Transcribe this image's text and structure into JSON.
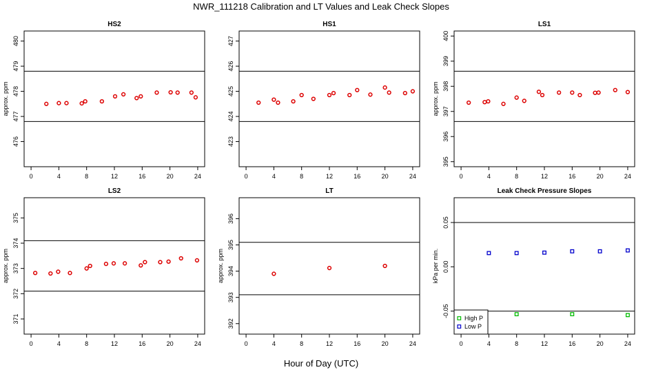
{
  "figure": {
    "title": "NWR_111218  Calibration and LT Values and Leak Check Slopes",
    "xlabel": "Hour of Day (UTC)"
  },
  "chart_data": [
    {
      "id": "hs2",
      "type": "scatter",
      "title": "HS2",
      "ylabel": "approx. ppm",
      "xlim": [
        -1,
        25
      ],
      "ylim": [
        475,
        480.4
      ],
      "xticks": [
        0,
        4,
        8,
        12,
        16,
        20,
        24
      ],
      "yticks": [
        476,
        477,
        478,
        479,
        480
      ],
      "hlines": [
        478.8,
        476.8
      ],
      "series": [
        {
          "color": "#dd0000",
          "marker": "circle",
          "x": [
            2.2,
            4,
            5.1,
            7.3,
            7.8,
            10.2,
            12.1,
            13.3,
            15.2,
            15.8,
            18.1,
            20.1,
            21.1,
            23.1,
            23.7
          ],
          "y": [
            477.5,
            477.53,
            477.53,
            477.52,
            477.6,
            477.6,
            477.8,
            477.88,
            477.73,
            477.8,
            477.95,
            477.96,
            477.95,
            477.95,
            477.76
          ]
        }
      ]
    },
    {
      "id": "hs1",
      "type": "scatter",
      "title": "HS1",
      "ylabel": "",
      "xlim": [
        -1,
        25
      ],
      "ylim": [
        422,
        427.4
      ],
      "xticks": [
        0,
        4,
        8,
        12,
        16,
        20,
        24
      ],
      "yticks": [
        423,
        424,
        425,
        426,
        427
      ],
      "hlines": [
        425.8,
        423.8
      ],
      "series": [
        {
          "color": "#dd0000",
          "marker": "circle",
          "x": [
            1.8,
            4,
            4.6,
            6.8,
            8,
            9.7,
            12,
            12.6,
            14.9,
            16,
            17.9,
            20,
            20.6,
            22.9,
            24
          ],
          "y": [
            424.55,
            424.67,
            424.55,
            424.6,
            424.85,
            424.7,
            424.85,
            424.93,
            424.85,
            425.05,
            424.87,
            425.15,
            424.95,
            424.93,
            425.0
          ]
        }
      ]
    },
    {
      "id": "ls1",
      "type": "scatter",
      "title": "LS1",
      "ylabel": "approx. ppm",
      "xlim": [
        -1,
        25
      ],
      "ylim": [
        394.8,
        400.2
      ],
      "xticks": [
        0,
        4,
        8,
        12,
        16,
        20,
        24
      ],
      "yticks": [
        395,
        396,
        397,
        398,
        399,
        400
      ],
      "hlines": [
        398.6,
        396.6
      ],
      "series": [
        {
          "color": "#dd0000",
          "marker": "circle",
          "x": [
            1.1,
            3.4,
            3.9,
            6.1,
            8,
            9.1,
            11.2,
            11.7,
            14.1,
            16,
            17.1,
            19.3,
            19.8,
            22.2,
            24
          ],
          "y": [
            397.35,
            397.37,
            397.4,
            397.3,
            397.55,
            397.42,
            397.78,
            397.65,
            397.75,
            397.75,
            397.65,
            397.74,
            397.75,
            397.85,
            397.77
          ]
        }
      ]
    },
    {
      "id": "ls2",
      "type": "scatter",
      "title": "LS2",
      "ylabel": "approx. ppm",
      "xlim": [
        -1,
        25
      ],
      "ylim": [
        370.4,
        375.8
      ],
      "xticks": [
        0,
        4,
        8,
        12,
        16,
        20,
        24
      ],
      "yticks": [
        371,
        372,
        373,
        374,
        375
      ],
      "hlines": [
        374.1,
        372.1
      ],
      "series": [
        {
          "color": "#dd0000",
          "marker": "circle",
          "x": [
            0.6,
            2.8,
            3.9,
            5.6,
            8,
            8.5,
            10.8,
            11.9,
            13.5,
            15.8,
            16.4,
            18.6,
            19.8,
            21.6,
            23.9
          ],
          "y": [
            372.82,
            372.8,
            372.87,
            372.82,
            373.0,
            373.1,
            373.18,
            373.2,
            373.2,
            373.12,
            373.25,
            373.25,
            373.27,
            373.4,
            373.32
          ]
        }
      ]
    },
    {
      "id": "lt",
      "type": "scatter",
      "title": "LT",
      "ylabel": "approx. ppm",
      "xlim": [
        -1,
        25
      ],
      "ylim": [
        391.6,
        396.8
      ],
      "xticks": [
        0,
        4,
        8,
        12,
        16,
        20,
        24
      ],
      "yticks": [
        392,
        393,
        394,
        395,
        396
      ],
      "hlines": [
        395.1,
        393.1
      ],
      "series": [
        {
          "color": "#dd0000",
          "marker": "circle",
          "x": [
            4,
            12,
            20
          ],
          "y": [
            393.9,
            394.12,
            394.2
          ]
        }
      ]
    },
    {
      "id": "leak",
      "type": "scatter",
      "title": "Leak Check Pressure Slopes",
      "ylabel": "kPa per min.",
      "xlim": [
        -1,
        25
      ],
      "ylim": [
        -0.076,
        0.078
      ],
      "xticks": [
        0,
        4,
        8,
        12,
        16,
        20,
        24
      ],
      "yticks": [
        -0.05,
        0.0,
        0.05
      ],
      "ytick_labels": [
        "-0.05",
        "0.00",
        "0.05"
      ],
      "hlines": [
        0.05,
        -0.05
      ],
      "legend": {
        "placement": "bottom-left",
        "entries": [
          "High P",
          "Low P"
        ]
      },
      "series": [
        {
          "name": "High P",
          "color": "#00bb00",
          "marker": "square",
          "x": [
            8,
            16,
            24
          ],
          "y": [
            -0.0535,
            -0.0535,
            -0.0545
          ]
        },
        {
          "name": "Low P",
          "color": "#0000cc",
          "marker": "square",
          "x": [
            4,
            8,
            12,
            16,
            20,
            24
          ],
          "y": [
            0.0155,
            0.0155,
            0.016,
            0.0175,
            0.0175,
            0.0185
          ]
        }
      ]
    }
  ]
}
